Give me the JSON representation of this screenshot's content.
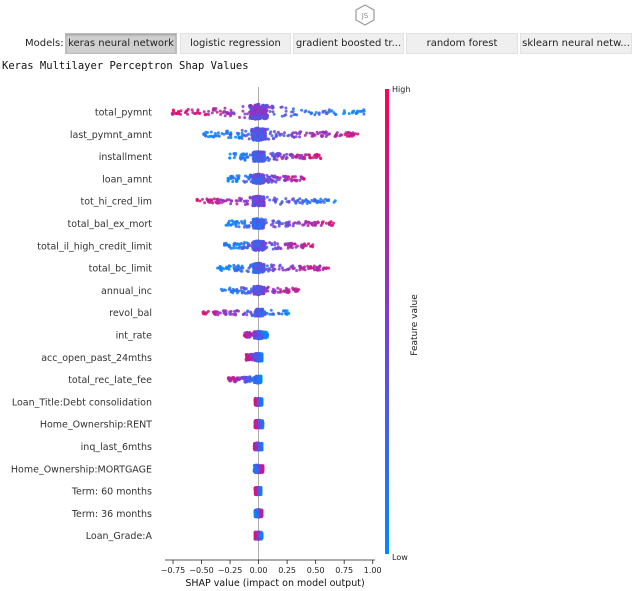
{
  "badge": {
    "icon": "js-hexagon-icon",
    "text": "JS"
  },
  "models": {
    "label": "Models:",
    "tabs": [
      {
        "label": "keras neural network",
        "active": true
      },
      {
        "label": "logistic regression",
        "active": false
      },
      {
        "label": "gradient boosted tr...",
        "active": false
      },
      {
        "label": "random forest",
        "active": false
      },
      {
        "label": "sklearn neural netw...",
        "active": false
      }
    ]
  },
  "title": "Keras Multilayer Perceptron Shap Values",
  "chart_data": {
    "type": "scatter",
    "subtype": "shap-beeswarm",
    "xlabel": "SHAP value (impact on model output)",
    "xticks": [
      -0.75,
      -0.5,
      -0.25,
      0.0,
      0.25,
      0.5,
      0.75,
      1.0
    ],
    "xtick_labels": [
      "−0.75",
      "−0.50",
      "−0.25",
      "0.00",
      "0.25",
      "0.50",
      "0.75",
      "1.00"
    ],
    "xlim": [
      -0.82,
      1.02
    ],
    "colorbar": {
      "label": "Feature value",
      "high": "High",
      "low": "Low",
      "low_color": "#008afb",
      "high_color": "#ff0052"
    },
    "features": [
      {
        "name": "total_pymnt",
        "min": -0.76,
        "max": 0.93,
        "spread": 1.0,
        "high_side": "left"
      },
      {
        "name": "last_pymnt_amnt",
        "min": -0.5,
        "max": 0.88,
        "spread": 0.75,
        "high_side": "right"
      },
      {
        "name": "installment",
        "min": -0.26,
        "max": 0.55,
        "spread": 0.55,
        "high_side": "right"
      },
      {
        "name": "loan_amnt",
        "min": -0.27,
        "max": 0.4,
        "spread": 0.5,
        "high_side": "right"
      },
      {
        "name": "tot_hi_cred_lim",
        "min": -0.55,
        "max": 0.7,
        "spread": 0.55,
        "high_side": "left"
      },
      {
        "name": "total_bal_ex_mort",
        "min": -0.29,
        "max": 0.67,
        "spread": 0.55,
        "high_side": "right"
      },
      {
        "name": "total_il_high_credit_limit",
        "min": -0.31,
        "max": 0.48,
        "spread": 0.5,
        "high_side": "right"
      },
      {
        "name": "total_bc_limit",
        "min": -0.36,
        "max": 0.62,
        "spread": 0.5,
        "high_side": "right"
      },
      {
        "name": "annual_inc",
        "min": -0.36,
        "max": 0.36,
        "spread": 0.4,
        "high_side": "right"
      },
      {
        "name": "revol_bal",
        "min": -0.5,
        "max": 0.27,
        "spread": 0.3,
        "high_side": "left"
      },
      {
        "name": "int_rate",
        "min": -0.13,
        "max": 0.08,
        "spread": 0.3,
        "high_side": "left"
      },
      {
        "name": "acc_open_past_24mths",
        "min": -0.11,
        "max": 0.03,
        "spread": 0.35,
        "high_side": "left"
      },
      {
        "name": "total_rec_late_fee",
        "min": -0.27,
        "max": 0.02,
        "spread": 0.3,
        "high_side": "left"
      },
      {
        "name": "Loan_Title:Debt consolidation",
        "min": -0.03,
        "max": 0.03,
        "spread": 0.3,
        "high_side": "left"
      },
      {
        "name": "Home_Ownership:RENT",
        "min": -0.03,
        "max": 0.04,
        "spread": 0.35,
        "high_side": "left"
      },
      {
        "name": "inq_last_6mths",
        "min": -0.04,
        "max": 0.03,
        "spread": 0.3,
        "high_side": "left"
      },
      {
        "name": "Home_Ownership:MORTGAGE",
        "min": -0.04,
        "max": 0.04,
        "spread": 0.35,
        "high_side": "right"
      },
      {
        "name": "Term: 60 months",
        "min": -0.03,
        "max": 0.02,
        "spread": 0.3,
        "high_side": "left"
      },
      {
        "name": "Term: 36 months",
        "min": -0.03,
        "max": 0.03,
        "spread": 0.3,
        "high_side": "right"
      },
      {
        "name": "Loan_Grade:A",
        "min": -0.03,
        "max": 0.03,
        "spread": 0.3,
        "high_side": "left"
      }
    ],
    "grid": false,
    "zero_line": true
  }
}
